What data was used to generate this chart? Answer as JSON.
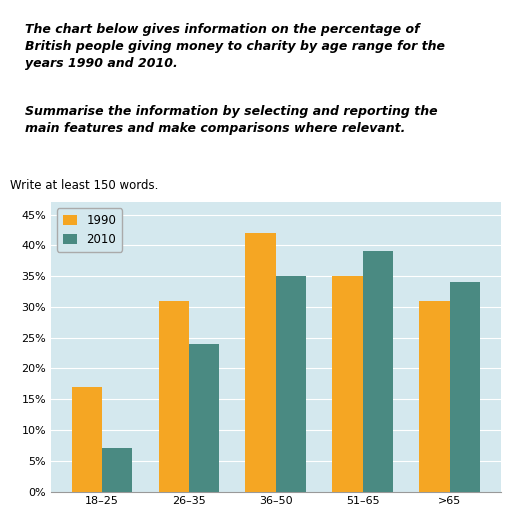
{
  "categories": [
    "18–25",
    "26–35",
    "36–50",
    "51–65",
    ">65"
  ],
  "values_1990": [
    17,
    31,
    42,
    35,
    31
  ],
  "values_2010": [
    7,
    24,
    35,
    39,
    34
  ],
  "color_1990": "#F5A623",
  "color_2010": "#4A8A82",
  "legend_labels": [
    "1990",
    "2010"
  ],
  "yticks": [
    0,
    5,
    10,
    15,
    20,
    25,
    30,
    35,
    40,
    45
  ],
  "ytick_labels": [
    "0%",
    "5%",
    "10%",
    "15%",
    "20%",
    "25%",
    "30%",
    "35%",
    "40%",
    "45%"
  ],
  "ylim": [
    0,
    47
  ],
  "bar_width": 0.35,
  "chart_bg": "#D4E8EE",
  "outer_bg": "#FFFFFF",
  "border_bg": "#F2F2F2",
  "title_line1": "The chart below gives information on the percentage of",
  "title_line2": "British people giving money to charity by age range for the",
  "title_line3": "years 1990 and 2010.",
  "subtitle_line1": "Summarise the information by selecting and reporting the",
  "subtitle_line2": "main features and make comparisons where relevant.",
  "write_text": "Write at least 150 words.",
  "title_fontsize": 9.0,
  "write_fontsize": 8.5,
  "legend_fontsize": 8.5,
  "tick_fontsize": 8.0
}
